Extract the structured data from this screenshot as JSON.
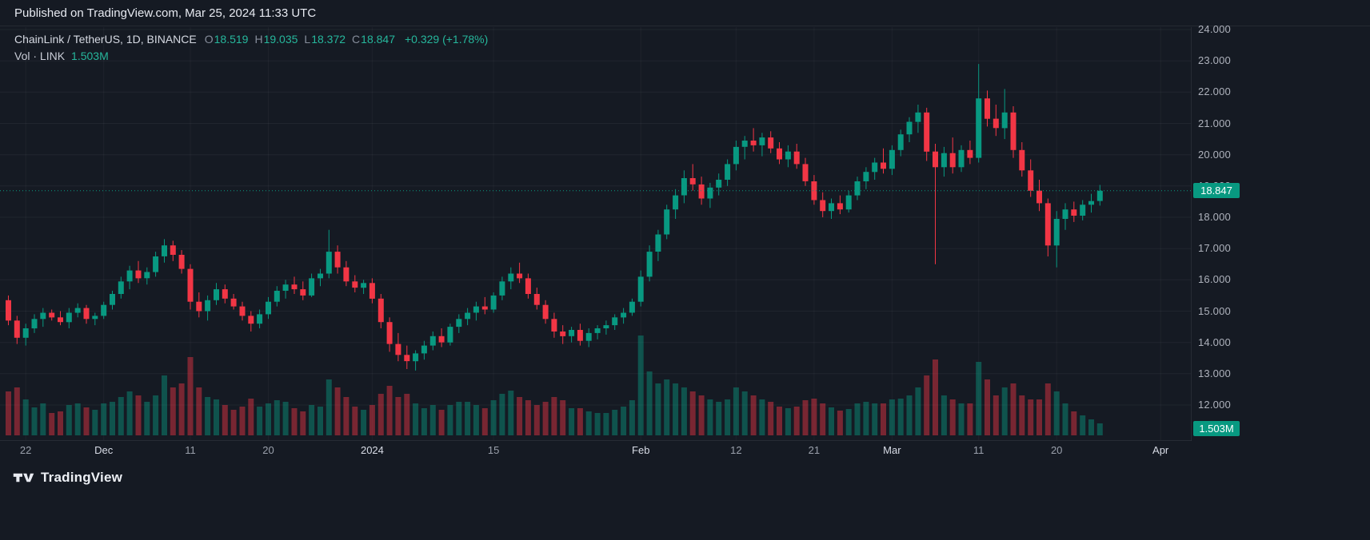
{
  "header": {
    "publish_note": "Published on TradingView.com, Mar 25, 2024 11:33 UTC"
  },
  "legend": {
    "symbol": "ChainLink / TetherUS, 1D, BINANCE",
    "ohlc": [
      {
        "key": "O",
        "value": "18.519"
      },
      {
        "key": "H",
        "value": "19.035"
      },
      {
        "key": "L",
        "value": "18.372"
      },
      {
        "key": "C",
        "value": "18.847"
      }
    ],
    "change": "+0.329 (+1.78%)",
    "volume_label": "Vol · LINK",
    "volume_value": "1.503M"
  },
  "colors": {
    "up": "#089981",
    "down": "#f23645",
    "vol_up": "rgba(8,153,129,0.45)",
    "vol_down": "rgba(242,54,69,0.45)",
    "legend_value": "#26b79c",
    "background": "#151a23",
    "axis_text": "#aeb2bc"
  },
  "price_axis": {
    "ticks": [
      "24.000",
      "23.000",
      "22.000",
      "21.000",
      "20.000",
      "19.000",
      "18.000",
      "17.000",
      "16.000",
      "15.000",
      "14.000",
      "13.000",
      "12.000"
    ],
    "last_price": "18.847",
    "last_price_value": 18.847,
    "volume_badge": "1.503M"
  },
  "time_axis": {
    "ticks": [
      {
        "label": "22",
        "i": 2,
        "major": false
      },
      {
        "label": "Dec",
        "i": 11,
        "major": true
      },
      {
        "label": "11",
        "i": 21,
        "major": false
      },
      {
        "label": "20",
        "i": 30,
        "major": false
      },
      {
        "label": "2024",
        "i": 42,
        "major": true
      },
      {
        "label": "15",
        "i": 56,
        "major": false
      },
      {
        "label": "Feb",
        "i": 73,
        "major": true
      },
      {
        "label": "12",
        "i": 84,
        "major": false
      },
      {
        "label": "21",
        "i": 93,
        "major": false
      },
      {
        "label": "Mar",
        "i": 102,
        "major": true
      },
      {
        "label": "11",
        "i": 112,
        "major": false
      },
      {
        "label": "20",
        "i": 121,
        "major": false
      },
      {
        "label": "Apr",
        "i": 133,
        "major": true
      }
    ]
  },
  "footer": {
    "brand": "TradingView"
  },
  "chart_data": {
    "type": "candlestick",
    "title": "ChainLink / TetherUS, 1D, BINANCE",
    "interval": "1D",
    "start_date": "2023-11-20",
    "end_date": "2024-03-25",
    "price_ylim": [
      11.5,
      24.6
    ],
    "price_tick_step": 1.0,
    "volume_unit": "millions",
    "last_close": 18.847,
    "prev_close": 18.518,
    "change": "+0.329 (+1.78%)",
    "candles_format": [
      "open",
      "high",
      "low",
      "close",
      "volume_millions"
    ],
    "candles": [
      [
        15.35,
        15.5,
        14.55,
        14.7,
        5.5
      ],
      [
        14.7,
        14.85,
        13.95,
        14.15,
        6.0
      ],
      [
        14.15,
        14.6,
        13.9,
        14.45,
        4.5
      ],
      [
        14.45,
        14.9,
        14.3,
        14.75,
        3.5
      ],
      [
        14.75,
        15.1,
        14.5,
        14.95,
        4.0
      ],
      [
        14.95,
        15.05,
        14.7,
        14.8,
        2.8
      ],
      [
        14.8,
        15.0,
        14.55,
        14.65,
        3.0
      ],
      [
        14.65,
        15.1,
        14.45,
        14.95,
        3.8
      ],
      [
        14.95,
        15.25,
        14.8,
        15.1,
        4.0
      ],
      [
        15.1,
        15.2,
        14.6,
        14.75,
        3.5
      ],
      [
        14.75,
        14.95,
        14.55,
        14.85,
        3.2
      ],
      [
        14.85,
        15.3,
        14.75,
        15.2,
        4.0
      ],
      [
        15.2,
        15.65,
        15.05,
        15.55,
        4.2
      ],
      [
        15.55,
        16.1,
        15.4,
        15.95,
        4.8
      ],
      [
        15.95,
        16.45,
        15.7,
        16.3,
        5.5
      ],
      [
        16.3,
        16.6,
        15.9,
        16.05,
        5.0
      ],
      [
        16.05,
        16.4,
        15.85,
        16.25,
        4.2
      ],
      [
        16.25,
        16.9,
        16.1,
        16.75,
        5.0
      ],
      [
        16.75,
        17.3,
        16.55,
        17.1,
        7.5
      ],
      [
        17.1,
        17.25,
        16.6,
        16.8,
        6.0
      ],
      [
        16.8,
        16.95,
        16.2,
        16.35,
        6.5
      ],
      [
        16.35,
        16.5,
        15.05,
        15.3,
        9.8
      ],
      [
        15.3,
        15.6,
        14.8,
        15.0,
        6.0
      ],
      [
        15.0,
        15.5,
        14.7,
        15.35,
        4.8
      ],
      [
        15.35,
        15.9,
        15.2,
        15.7,
        4.5
      ],
      [
        15.7,
        15.85,
        15.25,
        15.4,
        3.8
      ],
      [
        15.4,
        15.55,
        15.05,
        15.15,
        3.2
      ],
      [
        15.15,
        15.3,
        14.7,
        14.85,
        3.6
      ],
      [
        14.85,
        15.0,
        14.35,
        14.6,
        4.6
      ],
      [
        14.6,
        15.05,
        14.45,
        14.9,
        3.6
      ],
      [
        14.9,
        15.45,
        14.75,
        15.3,
        4.0
      ],
      [
        15.3,
        15.8,
        15.15,
        15.65,
        4.4
      ],
      [
        15.65,
        16.0,
        15.4,
        15.85,
        4.2
      ],
      [
        15.85,
        16.1,
        15.55,
        15.7,
        3.4
      ],
      [
        15.7,
        15.95,
        15.35,
        15.5,
        3.0
      ],
      [
        15.5,
        16.2,
        15.45,
        16.05,
        3.8
      ],
      [
        16.05,
        16.35,
        15.8,
        16.2,
        3.6
      ],
      [
        16.2,
        17.6,
        16.05,
        16.9,
        7.0
      ],
      [
        16.9,
        17.1,
        16.2,
        16.4,
        6.0
      ],
      [
        16.4,
        16.6,
        15.8,
        15.95,
        4.8
      ],
      [
        15.95,
        16.15,
        15.6,
        15.75,
        3.6
      ],
      [
        15.75,
        16.0,
        15.55,
        15.9,
        3.2
      ],
      [
        15.9,
        16.05,
        15.25,
        15.4,
        3.8
      ],
      [
        15.4,
        15.55,
        14.45,
        14.65,
        5.2
      ],
      [
        14.65,
        14.8,
        13.7,
        13.95,
        6.2
      ],
      [
        13.95,
        14.3,
        13.4,
        13.6,
        4.8
      ],
      [
        13.6,
        13.9,
        13.15,
        13.4,
        5.2
      ],
      [
        13.4,
        13.75,
        13.1,
        13.65,
        4.0
      ],
      [
        13.65,
        14.05,
        13.45,
        13.9,
        3.4
      ],
      [
        13.9,
        14.35,
        13.75,
        14.2,
        3.8
      ],
      [
        14.2,
        14.45,
        13.85,
        14.0,
        3.2
      ],
      [
        14.0,
        14.6,
        13.9,
        14.5,
        3.8
      ],
      [
        14.5,
        14.9,
        14.3,
        14.75,
        4.2
      ],
      [
        14.75,
        15.1,
        14.55,
        14.95,
        4.2
      ],
      [
        14.95,
        15.3,
        14.7,
        15.15,
        3.8
      ],
      [
        15.15,
        15.45,
        14.9,
        15.05,
        3.4
      ],
      [
        15.05,
        15.6,
        14.95,
        15.5,
        4.4
      ],
      [
        15.5,
        16.1,
        15.35,
        15.95,
        5.2
      ],
      [
        15.95,
        16.4,
        15.7,
        16.2,
        5.6
      ],
      [
        16.2,
        16.55,
        15.9,
        16.05,
        4.8
      ],
      [
        16.05,
        16.2,
        15.4,
        15.55,
        4.4
      ],
      [
        15.55,
        15.75,
        15.05,
        15.2,
        3.8
      ],
      [
        15.2,
        15.35,
        14.6,
        14.75,
        4.2
      ],
      [
        14.75,
        14.95,
        14.15,
        14.35,
        4.8
      ],
      [
        14.35,
        14.55,
        13.95,
        14.2,
        4.4
      ],
      [
        14.2,
        14.5,
        14.0,
        14.4,
        3.4
      ],
      [
        14.4,
        14.6,
        13.9,
        14.05,
        3.4
      ],
      [
        14.05,
        14.45,
        13.85,
        14.3,
        3.0
      ],
      [
        14.3,
        14.55,
        14.1,
        14.45,
        2.8
      ],
      [
        14.45,
        14.7,
        14.25,
        14.55,
        2.8
      ],
      [
        14.55,
        14.9,
        14.4,
        14.8,
        3.2
      ],
      [
        14.8,
        15.1,
        14.6,
        14.95,
        3.6
      ],
      [
        14.95,
        15.4,
        14.85,
        15.3,
        4.4
      ],
      [
        15.3,
        16.3,
        15.15,
        16.1,
        12.5
      ],
      [
        16.1,
        17.1,
        15.95,
        16.9,
        8.0
      ],
      [
        16.9,
        17.6,
        16.6,
        17.45,
        6.5
      ],
      [
        17.45,
        18.4,
        17.3,
        18.25,
        7.0
      ],
      [
        18.25,
        18.9,
        17.95,
        18.7,
        6.5
      ],
      [
        18.7,
        19.5,
        18.45,
        19.25,
        6.0
      ],
      [
        19.25,
        19.7,
        18.85,
        19.05,
        5.5
      ],
      [
        19.05,
        19.3,
        18.4,
        18.6,
        5.0
      ],
      [
        18.6,
        19.1,
        18.3,
        18.95,
        4.5
      ],
      [
        18.95,
        19.4,
        18.7,
        19.2,
        4.2
      ],
      [
        19.2,
        19.85,
        19.0,
        19.7,
        4.5
      ],
      [
        19.7,
        20.45,
        19.5,
        20.25,
        6.0
      ],
      [
        20.25,
        20.6,
        19.85,
        20.45,
        5.5
      ],
      [
        20.45,
        20.85,
        20.1,
        20.3,
        5.0
      ],
      [
        20.3,
        20.7,
        19.95,
        20.55,
        4.5
      ],
      [
        20.55,
        20.75,
        20.05,
        20.2,
        4.2
      ],
      [
        20.2,
        20.4,
        19.7,
        19.85,
        3.6
      ],
      [
        19.85,
        20.3,
        19.6,
        20.1,
        3.4
      ],
      [
        20.1,
        20.35,
        19.55,
        19.7,
        3.6
      ],
      [
        19.7,
        19.9,
        19.0,
        19.15,
        4.4
      ],
      [
        19.15,
        19.35,
        18.4,
        18.55,
        4.6
      ],
      [
        18.55,
        18.8,
        18.0,
        18.2,
        4.0
      ],
      [
        18.2,
        18.6,
        17.95,
        18.45,
        3.5
      ],
      [
        18.45,
        18.7,
        18.1,
        18.25,
        3.1
      ],
      [
        18.25,
        18.85,
        18.15,
        18.7,
        3.3
      ],
      [
        18.7,
        19.3,
        18.55,
        19.15,
        4.0
      ],
      [
        19.15,
        19.6,
        18.9,
        19.45,
        4.2
      ],
      [
        19.45,
        19.9,
        19.2,
        19.75,
        4.0
      ],
      [
        19.75,
        20.2,
        19.4,
        19.55,
        4.0
      ],
      [
        19.55,
        20.3,
        19.35,
        20.15,
        4.5
      ],
      [
        20.15,
        20.8,
        19.95,
        20.65,
        4.6
      ],
      [
        20.65,
        21.2,
        20.4,
        21.05,
        5.0
      ],
      [
        21.05,
        21.6,
        20.7,
        21.35,
        6.0
      ],
      [
        21.35,
        21.5,
        19.8,
        20.1,
        7.5
      ],
      [
        20.1,
        20.35,
        16.5,
        19.6,
        9.5
      ],
      [
        19.6,
        20.25,
        19.3,
        20.05,
        5.0
      ],
      [
        20.05,
        20.55,
        19.4,
        19.6,
        4.5
      ],
      [
        19.6,
        20.3,
        19.45,
        20.15,
        4.0
      ],
      [
        20.15,
        20.45,
        19.7,
        19.9,
        4.0
      ],
      [
        19.9,
        22.9,
        19.75,
        21.8,
        9.2
      ],
      [
        21.8,
        22.05,
        20.9,
        21.15,
        7.0
      ],
      [
        21.15,
        21.6,
        20.6,
        20.85,
        5.0
      ],
      [
        20.85,
        22.1,
        20.5,
        21.35,
        6.0
      ],
      [
        21.35,
        21.55,
        19.9,
        20.15,
        6.5
      ],
      [
        20.15,
        20.4,
        19.3,
        19.5,
        5.0
      ],
      [
        19.5,
        19.85,
        18.65,
        18.85,
        4.5
      ],
      [
        18.85,
        19.2,
        18.2,
        18.45,
        4.5
      ],
      [
        18.45,
        18.6,
        16.75,
        17.1,
        6.5
      ],
      [
        17.1,
        18.2,
        16.4,
        17.95,
        5.5
      ],
      [
        17.95,
        18.45,
        17.6,
        18.25,
        4.0
      ],
      [
        18.25,
        18.5,
        17.85,
        18.05,
        3.0
      ],
      [
        18.05,
        18.55,
        17.9,
        18.4,
        2.5
      ],
      [
        18.4,
        18.75,
        18.15,
        18.518,
        2.0
      ],
      [
        18.519,
        19.035,
        18.372,
        18.847,
        1.503
      ]
    ]
  }
}
